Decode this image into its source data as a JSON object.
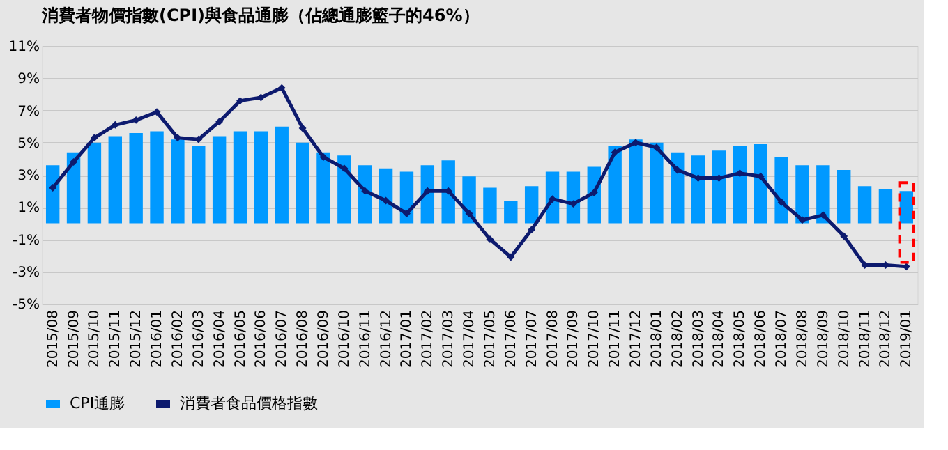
{
  "chart_data": {
    "type": "bar",
    "title": "消費者物價指數(CPI)與食品通膨（佔總通膨籃子的46%）",
    "categories": [
      "2015/08",
      "2015/09",
      "2015/10",
      "2015/11",
      "2015/12",
      "2016/01",
      "2016/02",
      "2016/03",
      "2016/04",
      "2016/05",
      "2016/06",
      "2016/07",
      "2016/08",
      "2016/09",
      "2016/10",
      "2016/11",
      "2016/12",
      "2017/01",
      "2017/02",
      "2017/03",
      "2017/04",
      "2017/05",
      "2017/06",
      "2017/07",
      "2017/08",
      "2017/09",
      "2017/10",
      "2017/11",
      "2017/12",
      "2018/01",
      "2018/02",
      "2018/03",
      "2018/04",
      "2018/05",
      "2018/06",
      "2018/07",
      "2018/08",
      "2018/09",
      "2018/10",
      "2018/11",
      "2018/12",
      "2019/01"
    ],
    "series": [
      {
        "name": "CPI通膨",
        "color": "#0099ff",
        "values": [
          3.6,
          4.4,
          5.0,
          5.4,
          5.6,
          5.7,
          5.2,
          4.8,
          5.4,
          5.7,
          5.7,
          6.0,
          5.0,
          4.4,
          4.2,
          3.6,
          3.4,
          3.2,
          3.6,
          3.9,
          2.9,
          2.2,
          1.4,
          2.3,
          3.2,
          3.2,
          3.5,
          4.8,
          5.2,
          5.0,
          4.4,
          4.2,
          4.5,
          4.8,
          4.9,
          4.1,
          3.6,
          3.6,
          3.3,
          2.3,
          2.1,
          2.0
        ]
      },
      {
        "name": "消費者食品價格指數",
        "type": "line",
        "color": "#0d1a6e",
        "marker": "diamond",
        "values": [
          2.2,
          3.8,
          5.3,
          6.1,
          6.4,
          6.9,
          5.3,
          5.2,
          6.3,
          7.6,
          7.8,
          8.4,
          5.9,
          4.1,
          3.4,
          2.0,
          1.4,
          0.6,
          2.0,
          2.0,
          0.6,
          -1.0,
          -2.1,
          -0.4,
          1.5,
          1.2,
          1.9,
          4.4,
          5.0,
          4.7,
          3.3,
          2.8,
          2.8,
          3.1,
          2.9,
          1.3,
          0.2,
          0.5,
          -0.8,
          -2.6,
          -2.6,
          -2.7
        ]
      }
    ],
    "ylim": [
      -5,
      11
    ],
    "yticks": [
      {
        "value": -5,
        "label": "-5%"
      },
      {
        "value": -3,
        "label": "-3%"
      },
      {
        "value": -1,
        "label": "-1%"
      },
      {
        "value": 1,
        "label": "1%"
      },
      {
        "value": 3,
        "label": "3%"
      },
      {
        "value": 5,
        "label": "5%"
      },
      {
        "value": 7,
        "label": "7%"
      },
      {
        "value": 9,
        "label": "9%"
      },
      {
        "value": 11,
        "label": "11%"
      }
    ],
    "grid": "y",
    "legend": "bottom"
  }
}
